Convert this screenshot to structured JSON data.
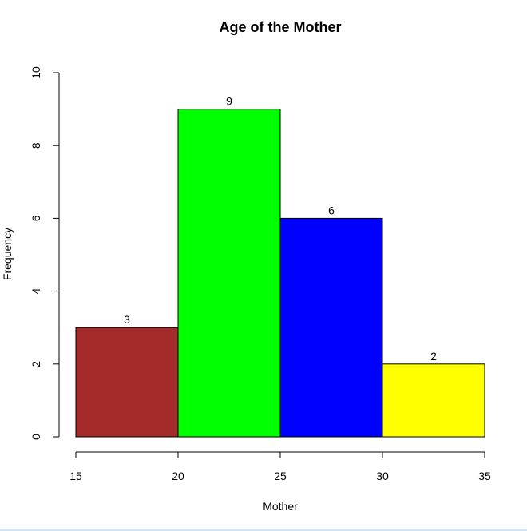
{
  "chart_data": {
    "type": "bar",
    "title": "Age of the Mother",
    "xlabel": "Mother",
    "ylabel": "Frequency",
    "bins": [
      {
        "from": 15,
        "to": 20,
        "value": 3,
        "color": "#a52a2a"
      },
      {
        "from": 20,
        "to": 25,
        "value": 9,
        "color": "#00ff00"
      },
      {
        "from": 25,
        "to": 30,
        "value": 6,
        "color": "#0000ff"
      },
      {
        "from": 30,
        "to": 35,
        "value": 2,
        "color": "#ffff00"
      }
    ],
    "categories": [
      "15-20",
      "20-25",
      "25-30",
      "30-35"
    ],
    "values": [
      3,
      9,
      6,
      2
    ],
    "xlim": [
      15,
      35
    ],
    "ylim": [
      0,
      10
    ],
    "x_ticks": [
      15,
      20,
      25,
      30,
      35
    ],
    "y_ticks": [
      0,
      2,
      4,
      6,
      8,
      10
    ],
    "data_labels": [
      "3",
      "9",
      "6",
      "2"
    ],
    "grid": false,
    "legend": "none"
  }
}
